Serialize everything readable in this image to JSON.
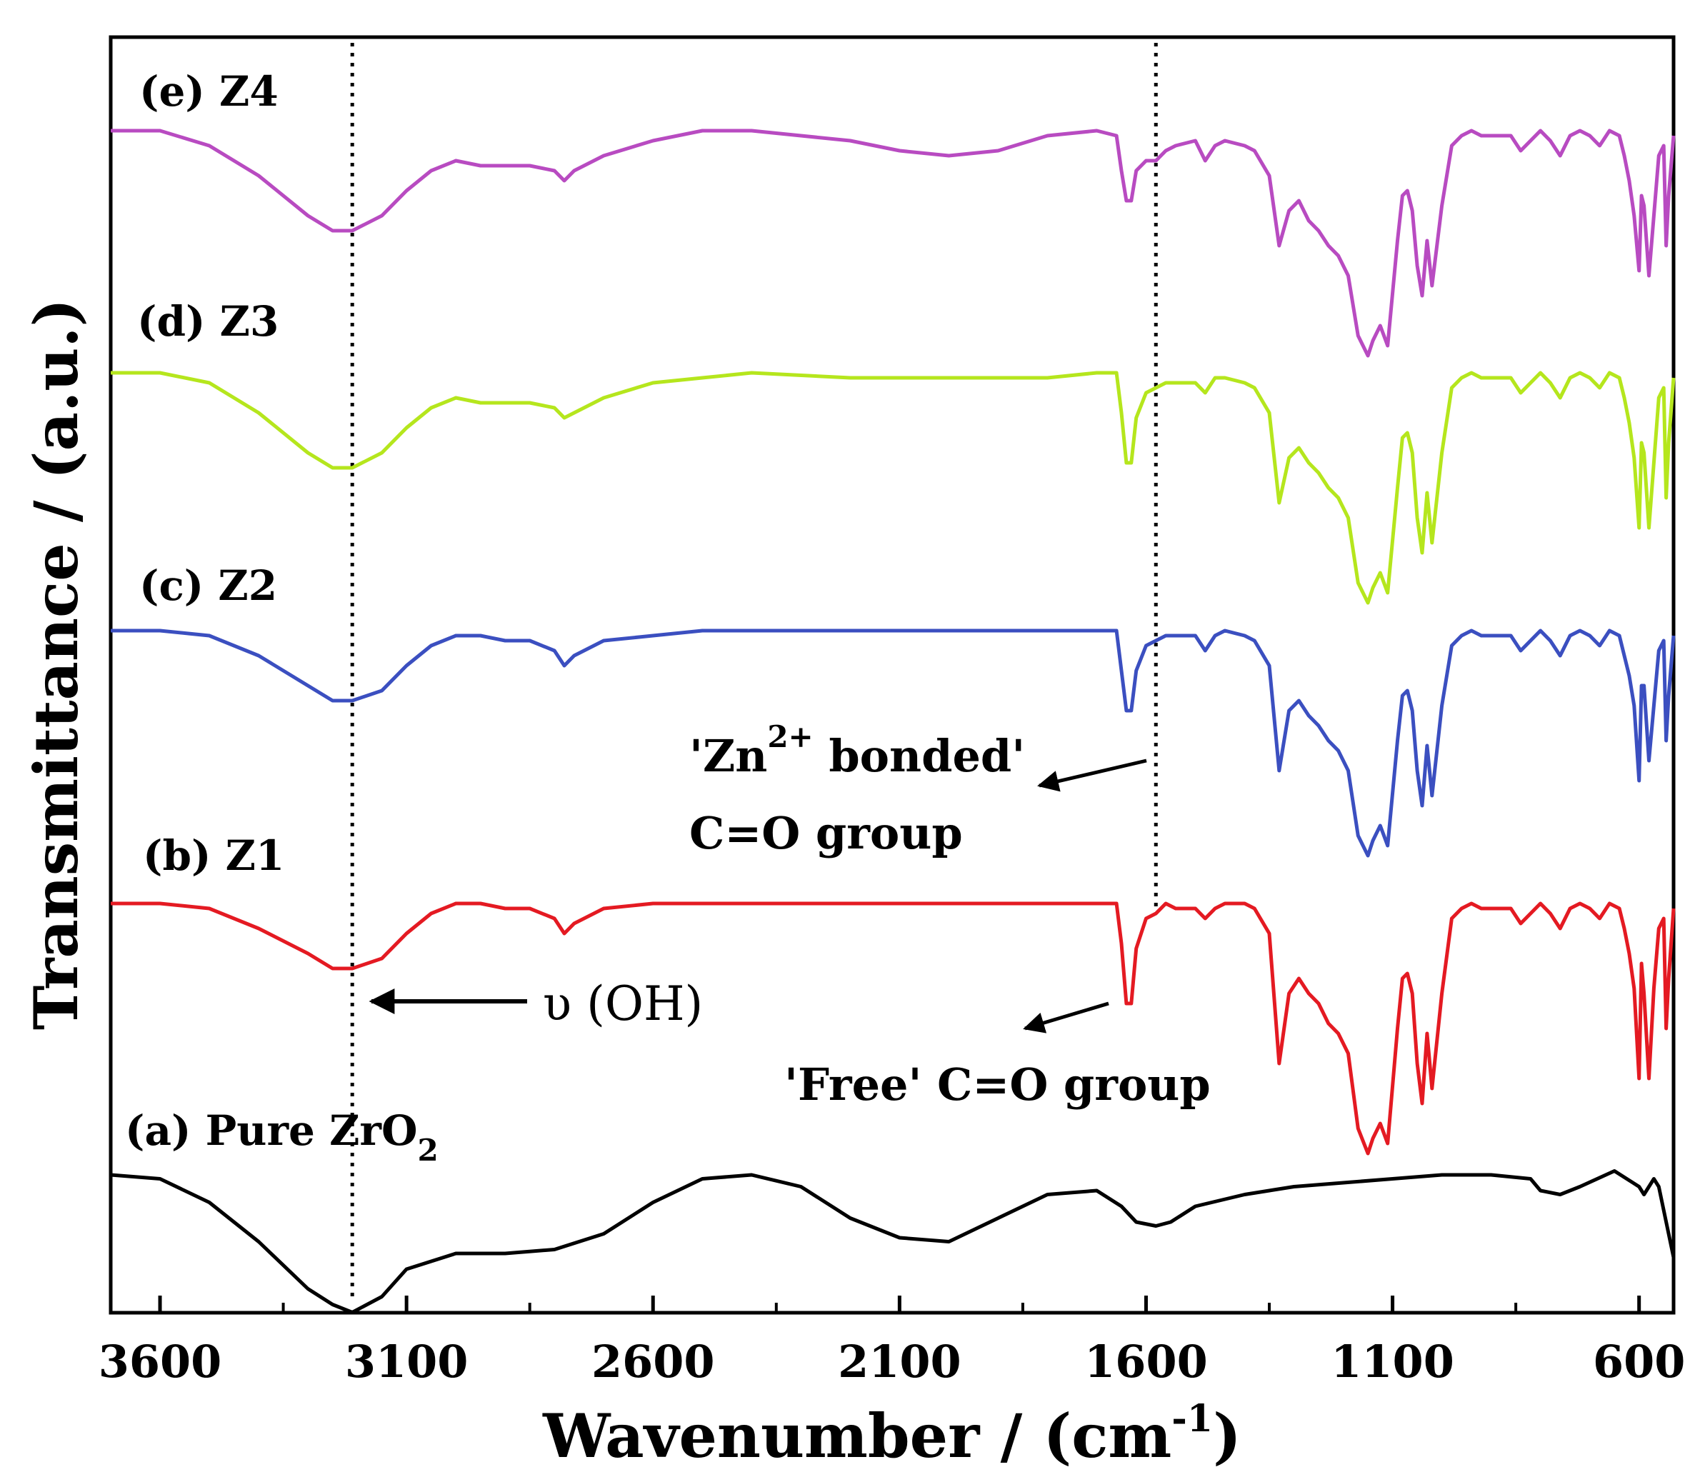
{
  "chart_data": {
    "type": "line",
    "title": "",
    "xlabel": "Wavenumber / (cm",
    "xlabel_sup": "-1",
    "xlabel_tail": ")",
    "ylabel": "Transmittance / (a.u.)",
    "xlim": [
      3700,
      530
    ],
    "x_reversed": true,
    "x_ticks": [
      3600,
      3100,
      2600,
      2100,
      1600,
      1100,
      600
    ],
    "x_tick_labels": [
      "3600",
      "3100",
      "2600",
      "2100",
      "1600",
      "1100",
      "600"
    ],
    "y_ticks_shown": false,
    "grid": false,
    "reference_lines_x": [
      3210,
      1580
    ],
    "series": [
      {
        "name": "Pure ZrO2",
        "label_prefix": "(a) Pure ZrO",
        "label_sub": "2",
        "color": "#000000",
        "x": [
          3700,
          3600,
          3500,
          3400,
          3300,
          3250,
          3210,
          3150,
          3100,
          3000,
          2900,
          2800,
          2700,
          2600,
          2500,
          2400,
          2300,
          2200,
          2100,
          2000,
          1900,
          1800,
          1700,
          1650,
          1620,
          1580,
          1550,
          1500,
          1400,
          1300,
          1200,
          1100,
          1000,
          900,
          820,
          800,
          760,
          720,
          650,
          600,
          590,
          570,
          560,
          540,
          530
        ],
        "y": [
          -10.5,
          -10.6,
          -11.2,
          -12.2,
          -13.4,
          -13.8,
          -14.0,
          -13.6,
          -12.9,
          -12.5,
          -12.5,
          -12.4,
          -12.0,
          -11.2,
          -10.6,
          -10.5,
          -10.8,
          -11.6,
          -12.1,
          -12.2,
          -11.6,
          -11.0,
          -10.9,
          -11.3,
          -11.7,
          -11.8,
          -11.7,
          -11.3,
          -11.0,
          -10.8,
          -10.7,
          -10.6,
          -10.5,
          -10.5,
          -10.6,
          -10.9,
          -11.0,
          -10.8,
          -10.4,
          -10.8,
          -11.0,
          -10.6,
          -10.8,
          -12.0,
          -12.6
        ]
      },
      {
        "name": "Z1",
        "label": "(b) Z1",
        "color": "#e41a22",
        "x": [
          3700,
          3600,
          3500,
          3400,
          3300,
          3250,
          3210,
          3150,
          3100,
          3050,
          3000,
          2950,
          2900,
          2850,
          2800,
          2780,
          2760,
          2700,
          2600,
          2500,
          2400,
          2200,
          2000,
          1800,
          1700,
          1660,
          1650,
          1640,
          1630,
          1620,
          1600,
          1580,
          1560,
          1540,
          1500,
          1480,
          1460,
          1440,
          1400,
          1380,
          1350,
          1330,
          1310,
          1290,
          1270,
          1250,
          1230,
          1210,
          1190,
          1170,
          1150,
          1140,
          1125,
          1110,
          1090,
          1080,
          1070,
          1060,
          1050,
          1040,
          1030,
          1020,
          1000,
          980,
          960,
          940,
          920,
          900,
          880,
          860,
          840,
          820,
          800,
          780,
          760,
          740,
          720,
          700,
          680,
          660,
          640,
          630,
          620,
          610,
          600,
          595,
          590,
          580,
          570,
          560,
          550,
          545,
          540,
          530
        ],
        "y": [
          0.0,
          0.0,
          -0.1,
          -0.5,
          -1.0,
          -1.3,
          -1.3,
          -1.1,
          -0.6,
          -0.2,
          0.0,
          0.0,
          -0.1,
          -0.1,
          -0.3,
          -0.6,
          -0.4,
          -0.1,
          0.0,
          0.0,
          0.0,
          0.0,
          0.0,
          0.0,
          0.0,
          0.0,
          -0.8,
          -2.0,
          -2.0,
          -0.9,
          -0.3,
          -0.2,
          0.0,
          -0.1,
          -0.1,
          -0.3,
          -0.1,
          0.0,
          0.0,
          -0.1,
          -0.6,
          -3.2,
          -1.8,
          -1.5,
          -1.8,
          -2.0,
          -2.4,
          -2.6,
          -3.0,
          -4.5,
          -5.0,
          -4.7,
          -4.4,
          -4.8,
          -2.5,
          -1.5,
          -1.4,
          -1.8,
          -3.2,
          -4.0,
          -2.6,
          -3.7,
          -1.8,
          -0.3,
          -0.1,
          0.0,
          -0.1,
          -0.1,
          -0.1,
          -0.1,
          -0.4,
          -0.2,
          0.0,
          -0.2,
          -0.5,
          -0.1,
          0.0,
          -0.1,
          -0.3,
          0.0,
          -0.1,
          -0.5,
          -1.0,
          -1.7,
          -3.5,
          -1.2,
          -1.8,
          -3.5,
          -1.7,
          -0.5,
          -0.3,
          -2.5,
          -1.5,
          -0.1
        ]
      },
      {
        "name": "Z2",
        "label": "(c) Z2",
        "color": "#3b4fc0",
        "x": [
          3700,
          3600,
          3500,
          3400,
          3300,
          3250,
          3210,
          3150,
          3100,
          3050,
          3000,
          2950,
          2900,
          2850,
          2800,
          2780,
          2760,
          2700,
          2600,
          2500,
          2400,
          2200,
          2000,
          1800,
          1700,
          1660,
          1650,
          1640,
          1630,
          1620,
          1600,
          1580,
          1560,
          1540,
          1500,
          1480,
          1460,
          1440,
          1400,
          1380,
          1350,
          1330,
          1310,
          1290,
          1270,
          1250,
          1230,
          1210,
          1190,
          1170,
          1150,
          1140,
          1125,
          1110,
          1090,
          1080,
          1070,
          1060,
          1050,
          1040,
          1030,
          1020,
          1000,
          980,
          960,
          940,
          920,
          900,
          880,
          860,
          840,
          820,
          800,
          780,
          760,
          740,
          720,
          700,
          680,
          660,
          640,
          630,
          620,
          610,
          600,
          595,
          590,
          580,
          570,
          560,
          550,
          545,
          540,
          530
        ],
        "y": [
          0.0,
          0.0,
          -0.1,
          -0.5,
          -1.1,
          -1.4,
          -1.4,
          -1.2,
          -0.7,
          -0.3,
          -0.1,
          -0.1,
          -0.2,
          -0.2,
          -0.4,
          -0.7,
          -0.5,
          -0.2,
          -0.1,
          0.0,
          0.0,
          0.0,
          0.0,
          0.0,
          0.0,
          0.0,
          -0.8,
          -1.6,
          -1.6,
          -0.8,
          -0.3,
          -0.2,
          -0.1,
          -0.1,
          -0.1,
          -0.4,
          -0.1,
          0.0,
          -0.1,
          -0.2,
          -0.7,
          -2.8,
          -1.6,
          -1.4,
          -1.7,
          -1.9,
          -2.2,
          -2.4,
          -2.8,
          -4.1,
          -4.5,
          -4.2,
          -3.9,
          -4.3,
          -2.2,
          -1.3,
          -1.2,
          -1.6,
          -2.8,
          -3.5,
          -2.3,
          -3.3,
          -1.5,
          -0.3,
          -0.1,
          0.0,
          -0.1,
          -0.1,
          -0.1,
          -0.1,
          -0.4,
          -0.2,
          0.0,
          -0.2,
          -0.5,
          -0.1,
          0.0,
          -0.1,
          -0.3,
          0.0,
          -0.1,
          -0.5,
          -0.9,
          -1.5,
          -3.0,
          -1.1,
          -1.1,
          -2.6,
          -1.5,
          -0.4,
          -0.2,
          -2.2,
          -1.3,
          -0.1
        ]
      },
      {
        "name": "Z3",
        "label": "(d) Z3",
        "color": "#b5e61d",
        "x": [
          3700,
          3600,
          3500,
          3400,
          3300,
          3250,
          3210,
          3150,
          3100,
          3050,
          3000,
          2950,
          2900,
          2850,
          2800,
          2780,
          2760,
          2700,
          2600,
          2500,
          2400,
          2200,
          2000,
          1800,
          1700,
          1660,
          1650,
          1640,
          1630,
          1620,
          1600,
          1580,
          1560,
          1540,
          1500,
          1480,
          1460,
          1440,
          1400,
          1380,
          1350,
          1330,
          1310,
          1290,
          1270,
          1250,
          1230,
          1210,
          1190,
          1170,
          1150,
          1140,
          1125,
          1110,
          1090,
          1080,
          1070,
          1060,
          1050,
          1040,
          1030,
          1020,
          1000,
          980,
          960,
          940,
          920,
          900,
          880,
          860,
          840,
          820,
          800,
          780,
          760,
          740,
          720,
          700,
          680,
          660,
          640,
          630,
          620,
          610,
          600,
          595,
          590,
          580,
          570,
          560,
          550,
          545,
          540,
          530
        ],
        "y": [
          0.0,
          0.0,
          -0.2,
          -0.8,
          -1.6,
          -1.9,
          -1.9,
          -1.6,
          -1.1,
          -0.7,
          -0.5,
          -0.6,
          -0.6,
          -0.6,
          -0.7,
          -0.9,
          -0.8,
          -0.5,
          -0.2,
          -0.1,
          0.0,
          -0.1,
          -0.1,
          -0.1,
          0.0,
          0.0,
          -0.8,
          -1.8,
          -1.8,
          -0.9,
          -0.4,
          -0.3,
          -0.2,
          -0.2,
          -0.2,
          -0.4,
          -0.1,
          -0.1,
          -0.2,
          -0.3,
          -0.8,
          -2.6,
          -1.7,
          -1.5,
          -1.8,
          -2.0,
          -2.3,
          -2.5,
          -2.9,
          -4.2,
          -4.6,
          -4.3,
          -4.0,
          -4.4,
          -2.3,
          -1.3,
          -1.2,
          -1.6,
          -2.9,
          -3.6,
          -2.4,
          -3.4,
          -1.6,
          -0.3,
          -0.1,
          0.0,
          -0.1,
          -0.1,
          -0.1,
          -0.1,
          -0.4,
          -0.2,
          0.0,
          -0.2,
          -0.5,
          -0.1,
          0.0,
          -0.1,
          -0.3,
          0.0,
          -0.1,
          -0.5,
          -1.0,
          -1.7,
          -3.1,
          -1.4,
          -1.6,
          -3.1,
          -1.8,
          -0.5,
          -0.3,
          -2.5,
          -1.4,
          -0.1
        ]
      },
      {
        "name": "Z4",
        "label": "(e) Z4",
        "color": "#b84bc1",
        "x": [
          3700,
          3600,
          3500,
          3400,
          3300,
          3250,
          3210,
          3150,
          3100,
          3050,
          3000,
          2950,
          2900,
          2850,
          2800,
          2780,
          2760,
          2700,
          2600,
          2500,
          2400,
          2300,
          2200,
          2100,
          2000,
          1900,
          1800,
          1700,
          1660,
          1650,
          1640,
          1630,
          1620,
          1600,
          1580,
          1560,
          1540,
          1500,
          1480,
          1460,
          1440,
          1400,
          1380,
          1350,
          1330,
          1310,
          1290,
          1270,
          1250,
          1230,
          1210,
          1190,
          1170,
          1150,
          1140,
          1125,
          1110,
          1090,
          1080,
          1070,
          1060,
          1050,
          1040,
          1030,
          1020,
          1000,
          980,
          960,
          940,
          920,
          900,
          880,
          860,
          840,
          820,
          800,
          780,
          760,
          740,
          720,
          700,
          680,
          660,
          640,
          630,
          620,
          610,
          600,
          595,
          590,
          580,
          570,
          560,
          550,
          545,
          540,
          530
        ],
        "y": [
          0.0,
          0.0,
          -0.3,
          -0.9,
          -1.7,
          -2.0,
          -2.0,
          -1.7,
          -1.2,
          -0.8,
          -0.6,
          -0.7,
          -0.7,
          -0.7,
          -0.8,
          -1.0,
          -0.8,
          -0.5,
          -0.2,
          0.0,
          0.0,
          -0.1,
          -0.2,
          -0.4,
          -0.5,
          -0.4,
          -0.1,
          0.0,
          -0.1,
          -0.8,
          -1.4,
          -1.4,
          -0.8,
          -0.6,
          -0.6,
          -0.4,
          -0.3,
          -0.2,
          -0.6,
          -0.3,
          -0.2,
          -0.3,
          -0.4,
          -0.9,
          -2.3,
          -1.6,
          -1.4,
          -1.8,
          -2.0,
          -2.3,
          -2.5,
          -2.9,
          -4.1,
          -4.5,
          -4.2,
          -3.9,
          -4.3,
          -2.2,
          -1.3,
          -1.2,
          -1.6,
          -2.7,
          -3.3,
          -2.2,
          -3.1,
          -1.5,
          -0.3,
          -0.1,
          0.0,
          -0.1,
          -0.1,
          -0.1,
          -0.1,
          -0.4,
          -0.2,
          0.0,
          -0.2,
          -0.5,
          -0.1,
          0.0,
          -0.1,
          -0.3,
          0.0,
          -0.1,
          -0.5,
          -1.0,
          -1.7,
          -2.8,
          -1.3,
          -1.5,
          -2.9,
          -1.7,
          -0.5,
          -0.3,
          -2.3,
          -1.3,
          -0.1
        ]
      }
    ],
    "annotations": [
      {
        "id": "oh",
        "text": "υ (OH)",
        "points_to_x": 3210
      },
      {
        "id": "zn_bonded_1_pre",
        "text": "'Zn"
      },
      {
        "id": "zn_bonded_1_sup",
        "text": "2+"
      },
      {
        "id": "zn_bonded_1_post",
        "text": " bonded'"
      },
      {
        "id": "zn_bonded_2",
        "text": "C=O group"
      },
      {
        "id": "free_co",
        "text": "'Free' C=O group"
      }
    ]
  }
}
